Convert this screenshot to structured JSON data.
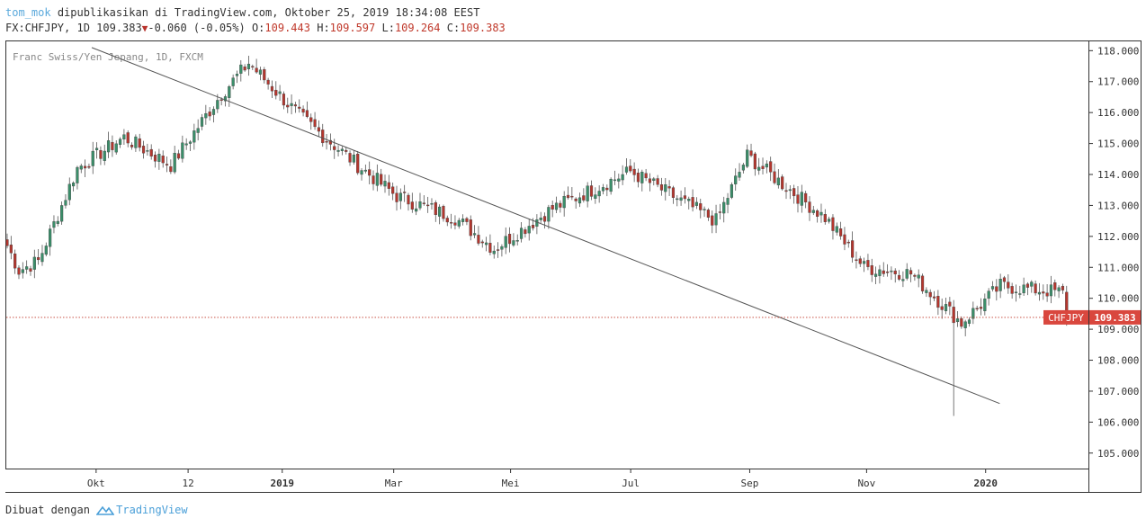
{
  "header": {
    "author": "tom_mok",
    "published_text": "dipublikasikan di TradingView.com, Oktober 25, 2019 18:34:08 EEST",
    "symbol_line": "FX:CHFJPY, 1D 109.383",
    "change": "-0.060 (-0.05%)",
    "open_label": "O:",
    "open_value": "109.443",
    "high_label": "H:",
    "high_value": "109.597",
    "low_label": "L:",
    "low_value": "109.264",
    "close_label": "C:",
    "close_value": "109.383"
  },
  "footer": {
    "made_with": "Dibuat dengan",
    "brand": "TradingView"
  },
  "colors": {
    "up": "#3a8f6a",
    "down": "#b5362e",
    "price_line": "#c0392b",
    "badge": "#d9473e"
  },
  "chart_data": {
    "type": "candlestick",
    "title": "Franc Swiss/Yen Jepang, 1D, FXCM",
    "ylim": [
      104.5,
      118.3
    ],
    "y_ticks": [
      "118.000",
      "117.000",
      "116.000",
      "115.000",
      "114.000",
      "113.000",
      "112.000",
      "111.000",
      "110.000",
      "109.000",
      "108.000",
      "107.000",
      "106.000",
      "105.000"
    ],
    "x_ticks": [
      {
        "label": "Okt",
        "bold": false,
        "frac": 0.083
      },
      {
        "label": "12",
        "bold": false,
        "frac": 0.168
      },
      {
        "label": "2019",
        "bold": true,
        "frac": 0.255
      },
      {
        "label": "Mar",
        "bold": false,
        "frac": 0.358
      },
      {
        "label": "Mei",
        "bold": false,
        "frac": 0.466
      },
      {
        "label": "Jul",
        "bold": false,
        "frac": 0.577
      },
      {
        "label": "Sep",
        "bold": false,
        "frac": 0.687
      },
      {
        "label": "Nov",
        "bold": false,
        "frac": 0.795
      },
      {
        "label": "2020",
        "bold": true,
        "frac": 0.905
      }
    ],
    "last_price": {
      "symbol": "CHFJPY",
      "value": "109.383",
      "numeric": 109.383
    },
    "trendline": {
      "start_frac": 0.079,
      "start_value": 118.1,
      "end_frac": 0.918,
      "end_value": 106.6
    },
    "n_bars": 273,
    "path": [
      [
        0,
        111.7
      ],
      [
        3,
        110.9
      ],
      [
        8,
        111.2
      ],
      [
        18,
        114.2
      ],
      [
        30,
        115.2
      ],
      [
        42,
        114.3
      ],
      [
        55,
        116.6
      ],
      [
        62,
        117.6
      ],
      [
        75,
        115.9
      ],
      [
        90,
        114.3
      ],
      [
        100,
        113.3
      ],
      [
        115,
        112.6
      ],
      [
        125,
        111.6
      ],
      [
        140,
        112.9
      ],
      [
        160,
        114.1
      ],
      [
        175,
        113.0
      ],
      [
        182,
        112.5
      ],
      [
        190,
        114.6
      ],
      [
        200,
        113.6
      ],
      [
        210,
        112.6
      ],
      [
        220,
        111.0
      ],
      [
        232,
        110.8
      ],
      [
        245,
        109.2
      ],
      [
        255,
        110.4
      ],
      [
        270,
        110.2
      ],
      [
        285,
        109.6
      ],
      [
        310,
        110.2
      ],
      [
        330,
        110.6
      ],
      [
        350,
        111.9
      ],
      [
        365,
        110.1
      ],
      [
        378,
        111.4
      ],
      [
        395,
        111.7
      ],
      [
        405,
        110.7
      ],
      [
        420,
        111.6
      ],
      [
        440,
        111.8
      ],
      [
        460,
        110.8
      ],
      [
        475,
        110.1
      ],
      [
        490,
        109.2
      ],
      [
        505,
        109.1
      ],
      [
        520,
        110.0
      ],
      [
        540,
        109.6
      ],
      [
        550,
        109.0
      ],
      [
        560,
        108.6
      ],
      [
        570,
        108.2
      ],
      [
        582,
        109.4
      ],
      [
        598,
        109.4
      ],
      [
        615,
        109.6
      ],
      [
        630,
        110.3
      ],
      [
        645,
        109.7
      ],
      [
        660,
        109.4
      ],
      [
        675,
        108.3
      ],
      [
        690,
        108.5
      ],
      [
        705,
        107.6
      ],
      [
        712,
        107.2
      ],
      [
        722,
        108.2
      ],
      [
        736,
        109.0
      ],
      [
        746,
        109.7
      ],
      [
        756,
        109.1
      ],
      [
        766,
        108.8
      ],
      [
        776,
        108.4
      ],
      [
        786,
        107.0
      ],
      [
        796,
        107.4
      ],
      [
        806,
        108.8
      ],
      [
        815,
        109.8
      ],
      [
        822,
        110.2
      ],
      [
        830,
        109.6
      ],
      [
        838,
        109.4
      ]
    ],
    "spikes": [
      {
        "bar": 243,
        "low": 106.2
      },
      {
        "bar": 299,
        "low": 108.7
      }
    ]
  }
}
